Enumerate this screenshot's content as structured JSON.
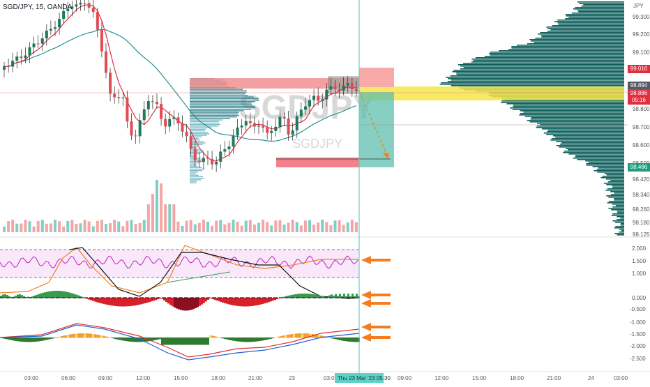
{
  "header": {
    "symbol_label": "SGD/JPY, 15, OANDA",
    "watermark": "SGDJPY",
    "watermark_small": "SGDJPY",
    "currency": "JPY"
  },
  "price_axis": {
    "ticks": [
      "99.300",
      "99.200",
      "99.100",
      "98.800",
      "98.700",
      "98.600",
      "98.500",
      "98.420",
      "98.340",
      "98.260",
      "98.180",
      "98.125"
    ]
  },
  "price_tags": [
    {
      "label": "99.016",
      "color": "#e03040"
    },
    {
      "label": "98.894",
      "color": "#555a66"
    },
    {
      "label": "98.886",
      "color": "#e03040"
    },
    {
      "label": "05:16",
      "color": "#e03040"
    },
    {
      "label": "98.486",
      "color": "#1e9e7a"
    }
  ],
  "oscillator_axis": {
    "ticks": [
      "2.000",
      "1.500",
      "1.000",
      "0.000",
      "-0.500",
      "-1.000",
      "-1.500",
      "-2.000",
      "-2.500"
    ]
  },
  "time_axis": {
    "ticks": [
      "03:00",
      "06:00",
      "09:00",
      "12:00",
      "15:00",
      "18:00",
      "21:00",
      "23",
      "03:00",
      "09:00",
      "12:00",
      "15:00",
      "18:00",
      "21:00",
      "24",
      "03:00"
    ],
    "cursor_label": "Thu 23 Mar '23 05:30"
  },
  "colors": {
    "up": "#1e7a5a",
    "down": "#e24a55",
    "profile": "#0e5f5c",
    "cursor": "#5fd1c7",
    "highlight": "#f4e64a",
    "arrow": "#f57c1f"
  }
}
